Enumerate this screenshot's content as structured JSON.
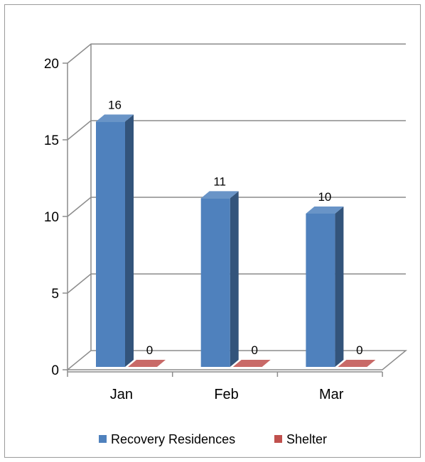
{
  "chart_data": {
    "type": "bar",
    "title": "",
    "xlabel": "",
    "ylabel": "",
    "categories": [
      "Jan",
      "Feb",
      "Mar"
    ],
    "series": [
      {
        "name": "Recovery Residences",
        "values": [
          16,
          11,
          10
        ],
        "color": "#4F81BD"
      },
      {
        "name": "Shelter",
        "values": [
          0,
          0,
          0
        ],
        "color": "#C0504D"
      }
    ],
    "ylim": [
      0,
      20
    ],
    "yticks": [
      "0",
      "5",
      "10",
      "15",
      "20"
    ],
    "data_labels": [
      [
        "16",
        "11",
        "10"
      ],
      [
        "0",
        "0",
        "0"
      ]
    ],
    "grid": true,
    "legend": "bottom",
    "three_d": true
  }
}
